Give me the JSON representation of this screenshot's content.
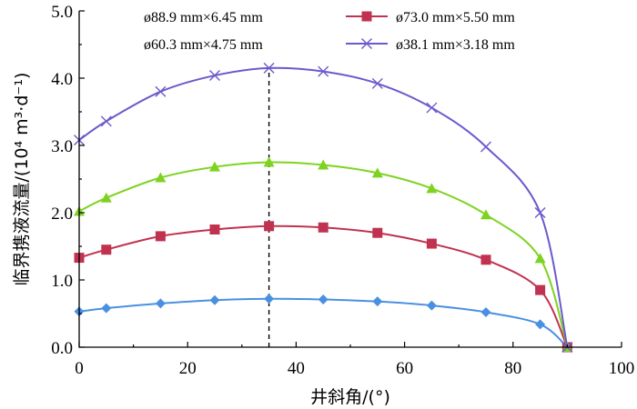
{
  "chart_data": {
    "type": "line",
    "title": "",
    "xlabel": "井斜角/(°)",
    "ylabel": "临界携液流量/(10⁴ m³·d⁻¹)",
    "xlim": [
      0,
      100
    ],
    "ylim": [
      0,
      5.0
    ],
    "x_ticks": [
      "0",
      "20",
      "40",
      "60",
      "80",
      "100"
    ],
    "y_ticks": [
      "0.0",
      "1.0",
      "2.0",
      "3.0",
      "4.0",
      "5.0"
    ],
    "grid": false,
    "legend_position": "top",
    "reference_line_x": 35,
    "x": [
      0,
      5,
      15,
      25,
      35,
      45,
      55,
      65,
      75,
      85,
      90
    ],
    "series": [
      {
        "name": "ø88.9 mm×6.45 mm",
        "color": "#4a90e2",
        "marker": "diamond",
        "values": [
          0.53,
          0.58,
          0.65,
          0.7,
          0.72,
          0.71,
          0.68,
          0.62,
          0.52,
          0.34,
          0.0
        ]
      },
      {
        "name": "ø73.0 mm×5.50 mm",
        "color": "#c0324f",
        "marker": "square",
        "values": [
          1.33,
          1.45,
          1.65,
          1.75,
          1.8,
          1.78,
          1.7,
          1.54,
          1.3,
          0.85,
          0.0
        ]
      },
      {
        "name": "ø60.3 mm×4.75 mm",
        "color": "#7ed321",
        "marker": "triangle",
        "values": [
          2.02,
          2.22,
          2.52,
          2.68,
          2.75,
          2.71,
          2.59,
          2.36,
          1.97,
          1.32,
          0.0
        ]
      },
      {
        "name": "ø38.1 mm×3.18 mm",
        "color": "#6a5acd",
        "marker": "x",
        "values": [
          3.08,
          3.36,
          3.8,
          4.04,
          4.15,
          4.1,
          3.92,
          3.56,
          2.98,
          2.0,
          0.0
        ]
      }
    ]
  }
}
